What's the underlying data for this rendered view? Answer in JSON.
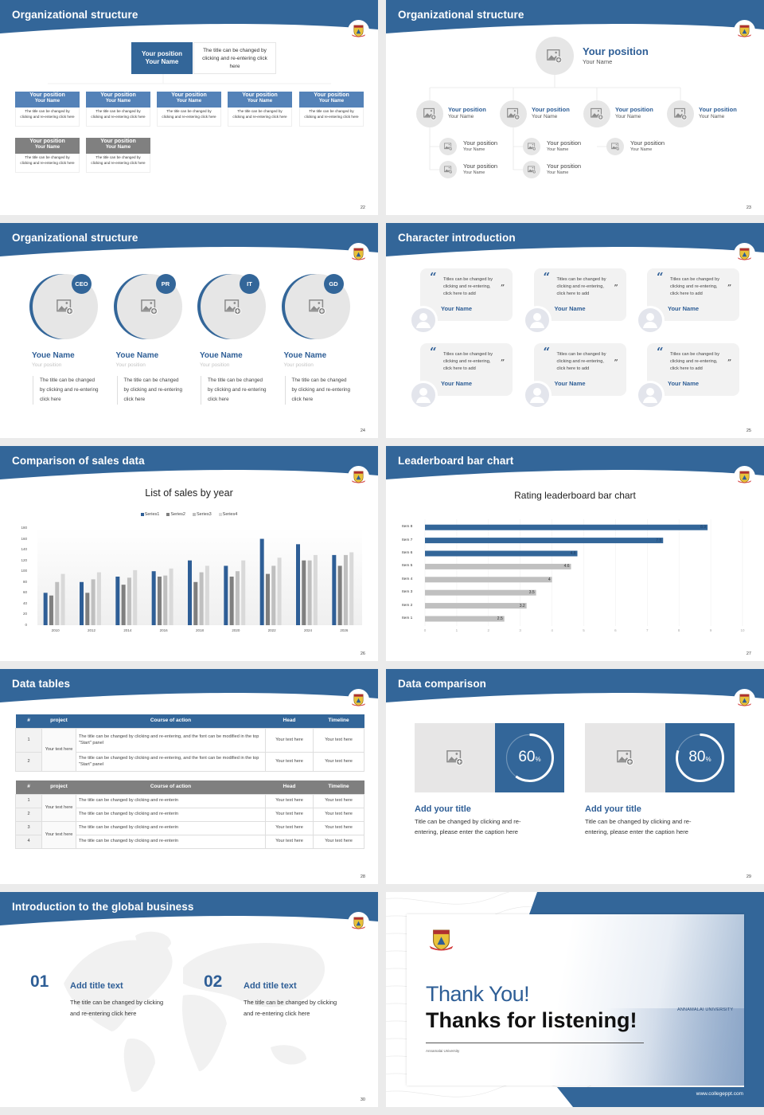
{
  "colors": {
    "brand": "#336699",
    "series": [
      "#2e5e96",
      "#7f7f7f",
      "#bfbfbf",
      "#d9d9d9"
    ],
    "highlight_bar": "#336699",
    "plain_bar": "#c0c0c0",
    "gray_header": "#808080"
  },
  "slide22": {
    "title": "Organizational structure",
    "page": "22",
    "top": {
      "position": "Your position",
      "name": "Your Name",
      "desc": "The title can be changed by clicking and re-entering click here"
    },
    "row1": [
      {
        "position": "Your position",
        "name": "Your Name",
        "desc": "The title can be changed by clicking and re-entering click here"
      },
      {
        "position": "Your position",
        "name": "Your Name",
        "desc": "The title can be changed by clicking and re-entering click here"
      },
      {
        "position": "Your position",
        "name": "Your Name",
        "desc": "The title can be changed by clicking and re-entering click here"
      },
      {
        "position": "Your position",
        "name": "Your Name",
        "desc": "The title can be changed by clicking and re-entering click here"
      },
      {
        "position": "Your position",
        "name": "Your Name",
        "desc": "The title can be changed by clicking and re-entering click here"
      }
    ],
    "row2": [
      {
        "position": "Your position",
        "name": "Your Name",
        "desc": "The title can be changed by clicking and re-entering click here"
      },
      {
        "position": "Your position",
        "name": "Your Name",
        "desc": "The title can be changed by clicking and re-entering click here"
      }
    ]
  },
  "slide23": {
    "title": "Organizational structure",
    "page": "23",
    "head": {
      "position": "Your position",
      "name": "Your Name"
    },
    "managers": [
      {
        "position": "Your position",
        "name": "Your Name"
      },
      {
        "position": "Your position",
        "name": "Your Name"
      },
      {
        "position": "Your position",
        "name": "Your Name"
      },
      {
        "position": "Your position",
        "name": "Your Name"
      }
    ],
    "staff": [
      {
        "position": "Your position",
        "name": "Your Name"
      },
      {
        "position": "Your position",
        "name": "Your Name"
      },
      {
        "position": "Your position",
        "name": "Your Name"
      },
      {
        "position": "Your position",
        "name": "Your Name"
      },
      {
        "position": "Your position",
        "name": "Your Name"
      }
    ]
  },
  "slide24": {
    "title": "Organizational structure",
    "page": "24",
    "people": [
      {
        "badge": "CEO",
        "name": "Youe Name",
        "position": "Your position",
        "desc": [
          "The title can be changed",
          "by clicking and re-entering",
          "click here"
        ]
      },
      {
        "badge": "PR",
        "name": "Youe Name",
        "position": "Your position",
        "desc": [
          "The title can be changed",
          "by clicking and re-entering",
          "click here"
        ]
      },
      {
        "badge": "IT",
        "name": "Youe Name",
        "position": "Your position",
        "desc": [
          "The title can be changed",
          "by clicking and re-entering",
          "click here"
        ]
      },
      {
        "badge": "GD",
        "name": "Youe Name",
        "position": "Your position",
        "desc": [
          "The title can be changed",
          "by clicking and re-entering",
          "click here"
        ]
      }
    ]
  },
  "slide25": {
    "title": "Character introduction",
    "page": "25",
    "cards": [
      {
        "quote": "Titles can be changed by clicking and re-entering, click here to add",
        "name": "Your Name"
      },
      {
        "quote": "Titles can be changed by clicking and re-entering, click here to add",
        "name": "Your Name"
      },
      {
        "quote": "Titles can be changed by clicking and re-entering, click here to add",
        "name": "Your Name"
      },
      {
        "quote": "Titles can be changed by clicking and re-entering, click here to add",
        "name": "Your Name"
      },
      {
        "quote": "Titles can be changed by clicking and re-entering, click here to add",
        "name": "Your Name"
      },
      {
        "quote": "Titles can be changed by clicking and re-entering, click here to add",
        "name": "Your Name"
      }
    ]
  },
  "slide26": {
    "title": "Comparison of sales data",
    "page": "26"
  },
  "slide27": {
    "title": "Leaderboard bar chart",
    "page": "27"
  },
  "slide28": {
    "title": "Data tables",
    "page": "28",
    "table1": {
      "headers": [
        "#",
        "project",
        "Course of action",
        "Head",
        "Timeline"
      ],
      "project": "Your text here",
      "rows": [
        {
          "num": "1",
          "course": "The title can be changed by clicking and re-entering, and the font can be modified in the top \"Start\" panel",
          "head": "Your text here",
          "timeline": "Your text here"
        },
        {
          "num": "2",
          "course": "The title can be changed by clicking and re-entering, and the font can be modified in the top \"Start\" panel",
          "head": "Your text here",
          "timeline": "Your text here"
        }
      ]
    },
    "table2": {
      "headers": [
        "#",
        "project",
        "Course of action",
        "Head",
        "Timeline"
      ],
      "projects": [
        "Your text here",
        "Your text here"
      ],
      "rows": [
        {
          "num": "1",
          "course": "The title can be changed by clicking and re-enterin",
          "head": "Your text here",
          "timeline": "Your text here"
        },
        {
          "num": "2",
          "course": "The title can be changed by clicking and re-enterin",
          "head": "Your text here",
          "timeline": "Your text here"
        },
        {
          "num": "3",
          "course": "The title can be changed by clicking and re-enterin",
          "head": "Your text here",
          "timeline": "Your text here"
        },
        {
          "num": "4",
          "course": "The title can be changed by clicking and re-enterin",
          "head": "Your text here",
          "timeline": "Your text here"
        }
      ]
    }
  },
  "slide29": {
    "title": "Data comparison",
    "page": "29",
    "items": [
      {
        "percent": 60,
        "value": "60",
        "unit": "%",
        "title": "Add your title",
        "desc": [
          "Title can be changed by clicking and re-",
          "entering, please enter the caption here"
        ]
      },
      {
        "percent": 80,
        "value": "80",
        "unit": "%",
        "title": "Add your title",
        "desc": [
          "Title can be changed by clicking and re-",
          "entering, please enter the caption here"
        ]
      }
    ]
  },
  "slide30": {
    "title": "Introduction to the global business",
    "page": "30",
    "items": [
      {
        "num": "01",
        "title": "Add title text",
        "desc": [
          "The title can be changed by clicking",
          "and re-entering click here"
        ]
      },
      {
        "num": "02",
        "title": "Add title text",
        "desc": [
          "The title can be changed by clicking",
          "and re-entering click here"
        ]
      }
    ]
  },
  "slide31": {
    "title": "Thank You!",
    "subtitle": "Thanks for listening!",
    "org": "Annamalai University",
    "building_sign": "ANNAMALAI UNIVERSITY",
    "url": "www.collegeppt.com"
  },
  "chart_data": [
    {
      "type": "bar",
      "title": "List of sales by year",
      "categories": [
        "2010",
        "2012",
        "2014",
        "2016",
        "2018",
        "2020",
        "2022",
        "2024",
        "2026"
      ],
      "series": [
        {
          "name": "Series1",
          "values": [
            60,
            80,
            90,
            100,
            120,
            110,
            160,
            150,
            130
          ]
        },
        {
          "name": "Series2",
          "values": [
            55,
            60,
            75,
            90,
            80,
            90,
            95,
            120,
            110
          ]
        },
        {
          "name": "Series3",
          "values": [
            80,
            85,
            88,
            92,
            98,
            100,
            110,
            120,
            130
          ]
        },
        {
          "name": "Series4",
          "values": [
            95,
            98,
            102,
            105,
            110,
            120,
            125,
            130,
            135
          ]
        }
      ],
      "ylim": [
        0,
        180
      ],
      "yticks": [
        "0",
        "20",
        "40",
        "60",
        "80",
        "100",
        "120",
        "140",
        "160",
        "180"
      ],
      "legend": "top",
      "grid": false
    },
    {
      "type": "bar",
      "orientation": "horizontal",
      "title": "Rating leaderboard bar chart",
      "categories": [
        "Item 1",
        "Item 2",
        "Item 3",
        "Item 4",
        "Item 5",
        "Item 6",
        "Item 7",
        "Item 8"
      ],
      "values": [
        2.5,
        3.2,
        3.5,
        4,
        4.6,
        4.8,
        7.5,
        8.9
      ],
      "labels": [
        "2.5",
        "3.2",
        "3.5",
        "4",
        "4.6",
        "4.8",
        "7.5",
        "8.9"
      ],
      "highlighted": [
        "Item 6",
        "Item 7",
        "Item 8"
      ],
      "xlim": [
        0,
        10
      ],
      "xticks": [
        "0",
        "1",
        "2",
        "3",
        "4",
        "5",
        "6",
        "7",
        "8",
        "9",
        "10"
      ],
      "grid": true
    }
  ]
}
